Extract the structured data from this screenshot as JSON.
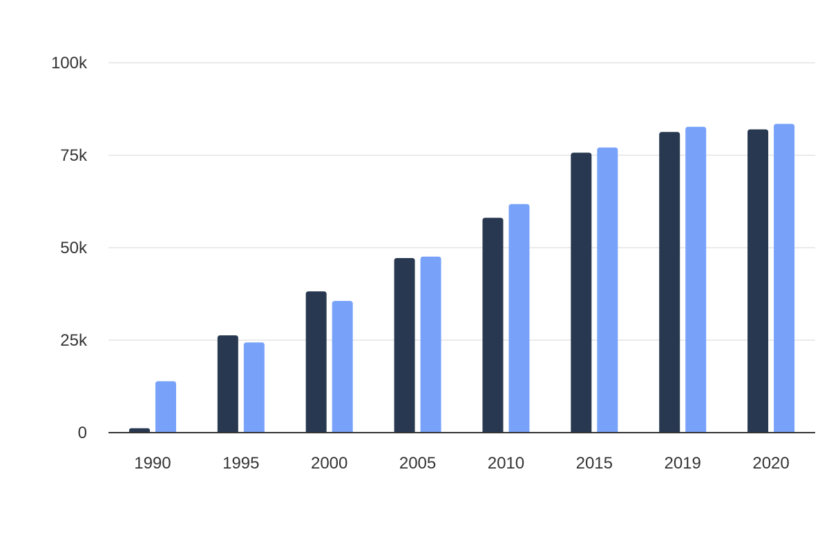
{
  "chart_data": {
    "type": "bar",
    "title": "",
    "xlabel": "",
    "ylabel": "",
    "categories": [
      "1990",
      "1995",
      "2000",
      "2005",
      "2010",
      "2015",
      "2019",
      "2020"
    ],
    "series": [
      {
        "color": "#283850",
        "values": [
          1200,
          26300,
          38200,
          47200,
          58100,
          75700,
          81300,
          82000
        ]
      },
      {
        "color": "#78a2fa",
        "values": [
          13900,
          24400,
          35600,
          47600,
          61800,
          77100,
          82700,
          83500
        ]
      }
    ],
    "ylim": [
      0,
      100000
    ],
    "yticks": [
      {
        "value": 0,
        "label": "0"
      },
      {
        "value": 25000,
        "label": "25k"
      },
      {
        "value": 50000,
        "label": "50k"
      },
      {
        "value": 75000,
        "label": "75k"
      },
      {
        "value": 100000,
        "label": "100k"
      }
    ],
    "grid": true,
    "legend": "none"
  }
}
